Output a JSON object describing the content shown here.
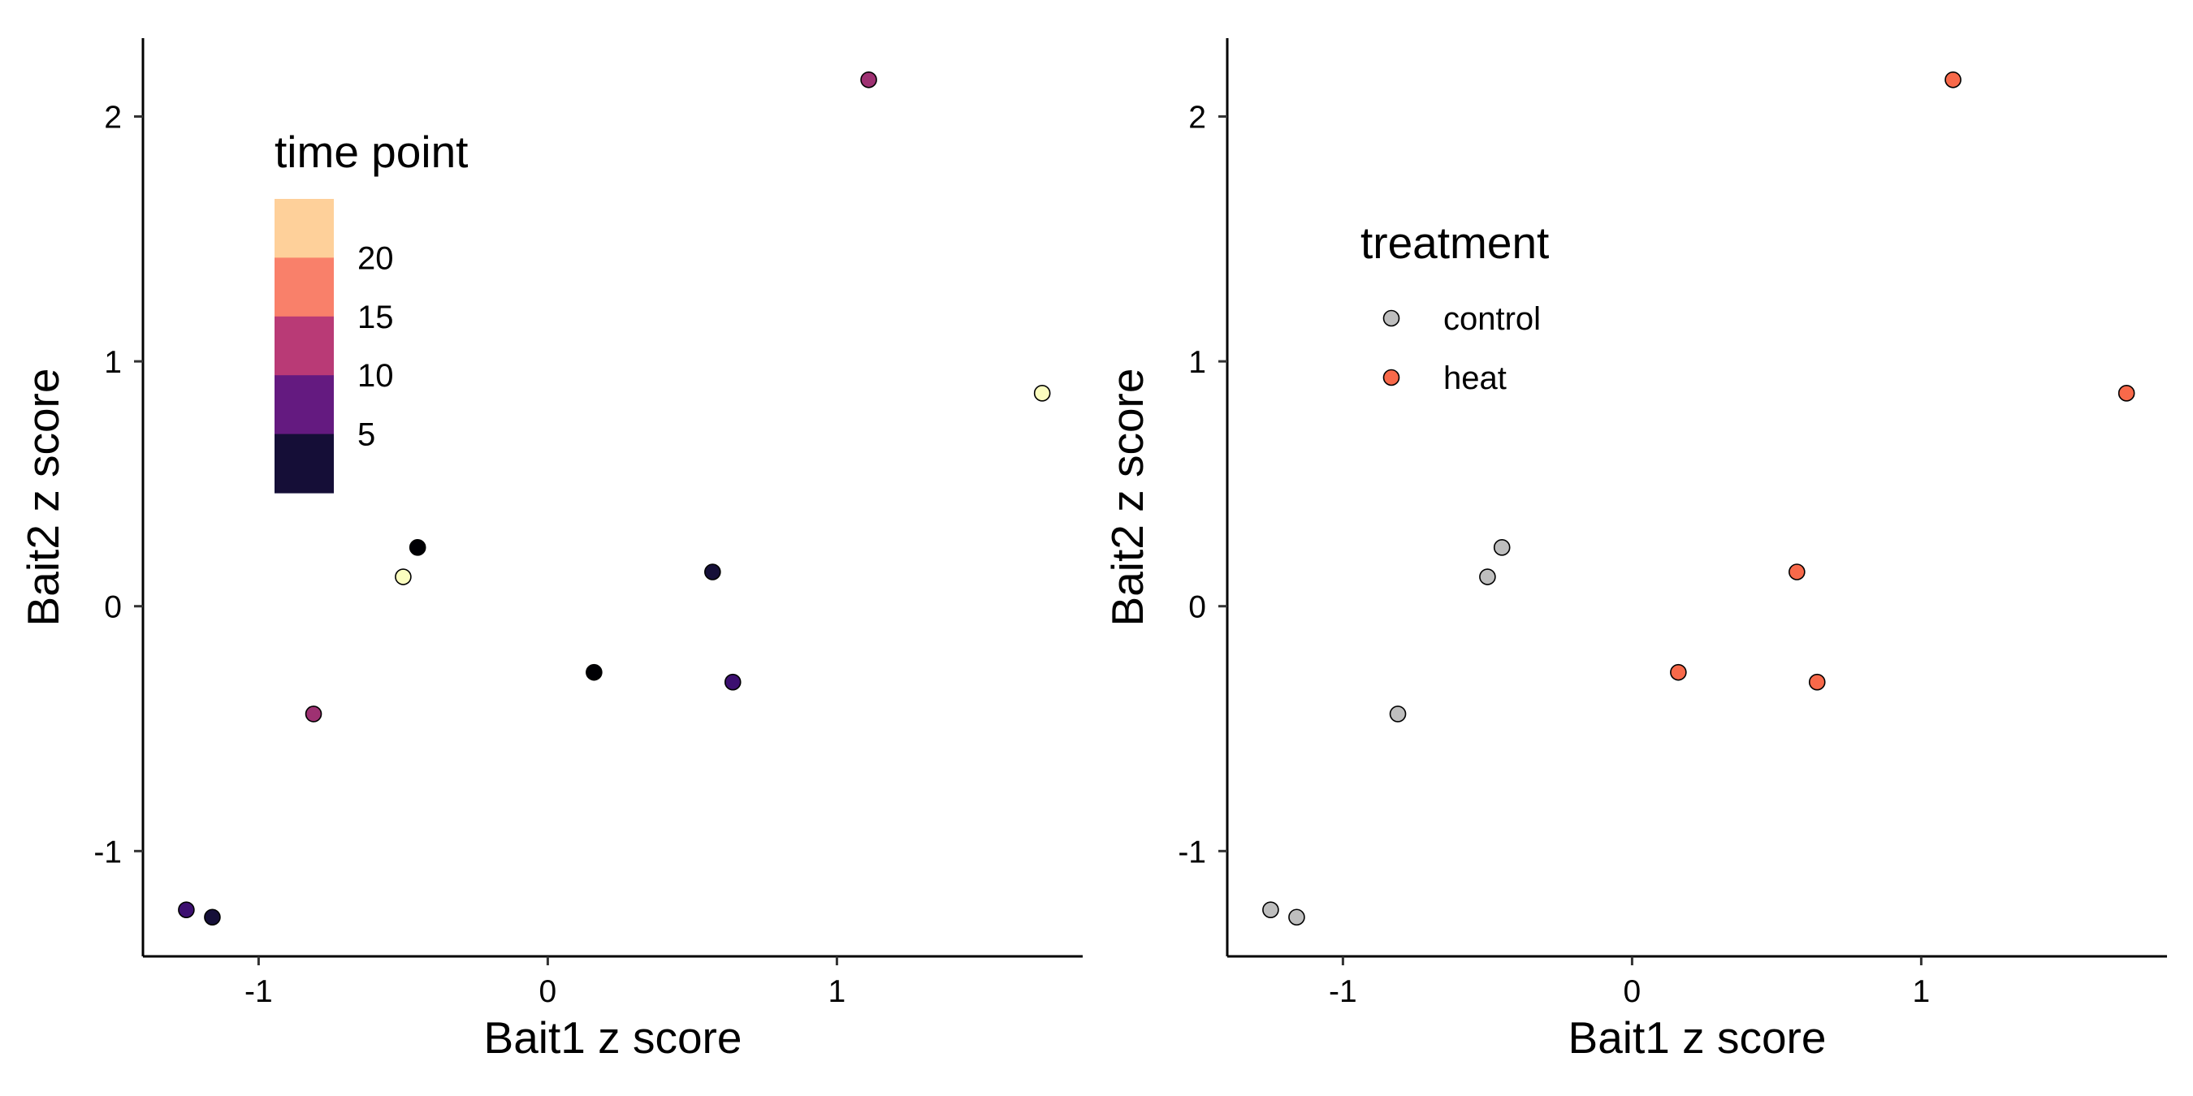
{
  "chart_data": [
    {
      "type": "scatter",
      "panel": "left",
      "xlabel": "Bait1 z score",
      "ylabel": "Bait2 z score",
      "xlim": [
        -1.4,
        1.85
      ],
      "ylim": [
        -1.43,
        2.32
      ],
      "xticks": [
        {
          "value": -1,
          "label": "-1"
        },
        {
          "value": 0,
          "label": "0"
        },
        {
          "value": 1,
          "label": "1"
        }
      ],
      "yticks": [
        {
          "value": -1,
          "label": "-1"
        },
        {
          "value": 0,
          "label": "0"
        },
        {
          "value": 1,
          "label": "1"
        },
        {
          "value": 2,
          "label": "2"
        }
      ],
      "grid": false,
      "color_by": "time point",
      "points": [
        {
          "x": 1.11,
          "y": 2.15,
          "color": "#9E3172"
        },
        {
          "x": 1.71,
          "y": 0.87,
          "color": "#FBFDBF"
        },
        {
          "x": -0.45,
          "y": 0.24,
          "color": "#000004"
        },
        {
          "x": -0.5,
          "y": 0.12,
          "color": "#FBFDBF"
        },
        {
          "x": 0.57,
          "y": 0.14,
          "color": "#150F38"
        },
        {
          "x": 0.16,
          "y": -0.27,
          "color": "#000004"
        },
        {
          "x": 0.64,
          "y": -0.31,
          "color": "#3C0F70"
        },
        {
          "x": -0.81,
          "y": -0.44,
          "color": "#9E3172"
        },
        {
          "x": -1.25,
          "y": -1.24,
          "color": "#3C0F70"
        },
        {
          "x": -1.16,
          "y": -1.27,
          "color": "#150F38"
        }
      ],
      "legend": {
        "title": "time point",
        "position": "top-left",
        "type": "colorbar",
        "bins": [
          "#FED09A",
          "#F9806A",
          "#B93A76",
          "#641A80",
          "#150E37"
        ],
        "labels": [
          "20",
          "15",
          "10",
          "5"
        ]
      }
    },
    {
      "type": "scatter",
      "panel": "right",
      "xlabel": "Bait1 z score",
      "ylabel": "Bait2 z score",
      "xlim": [
        -1.4,
        1.85
      ],
      "ylim": [
        -1.43,
        2.32
      ],
      "xticks": [
        {
          "value": -1,
          "label": "-1"
        },
        {
          "value": 0,
          "label": "0"
        },
        {
          "value": 1,
          "label": "1"
        }
      ],
      "yticks": [
        {
          "value": -1,
          "label": "-1"
        },
        {
          "value": 0,
          "label": "0"
        },
        {
          "value": 1,
          "label": "1"
        },
        {
          "value": 2,
          "label": "2"
        }
      ],
      "grid": false,
      "color_by": "treatment",
      "points": [
        {
          "x": 1.11,
          "y": 2.15,
          "group": "heat"
        },
        {
          "x": 1.71,
          "y": 0.87,
          "group": "heat"
        },
        {
          "x": -0.45,
          "y": 0.24,
          "group": "control"
        },
        {
          "x": -0.5,
          "y": 0.12,
          "group": "control"
        },
        {
          "x": 0.57,
          "y": 0.14,
          "group": "heat"
        },
        {
          "x": 0.16,
          "y": -0.27,
          "group": "heat"
        },
        {
          "x": 0.64,
          "y": -0.31,
          "group": "heat"
        },
        {
          "x": -0.81,
          "y": -0.44,
          "group": "control"
        },
        {
          "x": -1.25,
          "y": -1.24,
          "group": "control"
        },
        {
          "x": -1.16,
          "y": -1.27,
          "group": "control"
        }
      ],
      "legend": {
        "title": "treatment",
        "position": "top-left",
        "type": "points",
        "entries": [
          {
            "label": "control",
            "color": "#BEBEBE"
          },
          {
            "label": "heat",
            "color": "#F8694A"
          }
        ]
      }
    }
  ]
}
